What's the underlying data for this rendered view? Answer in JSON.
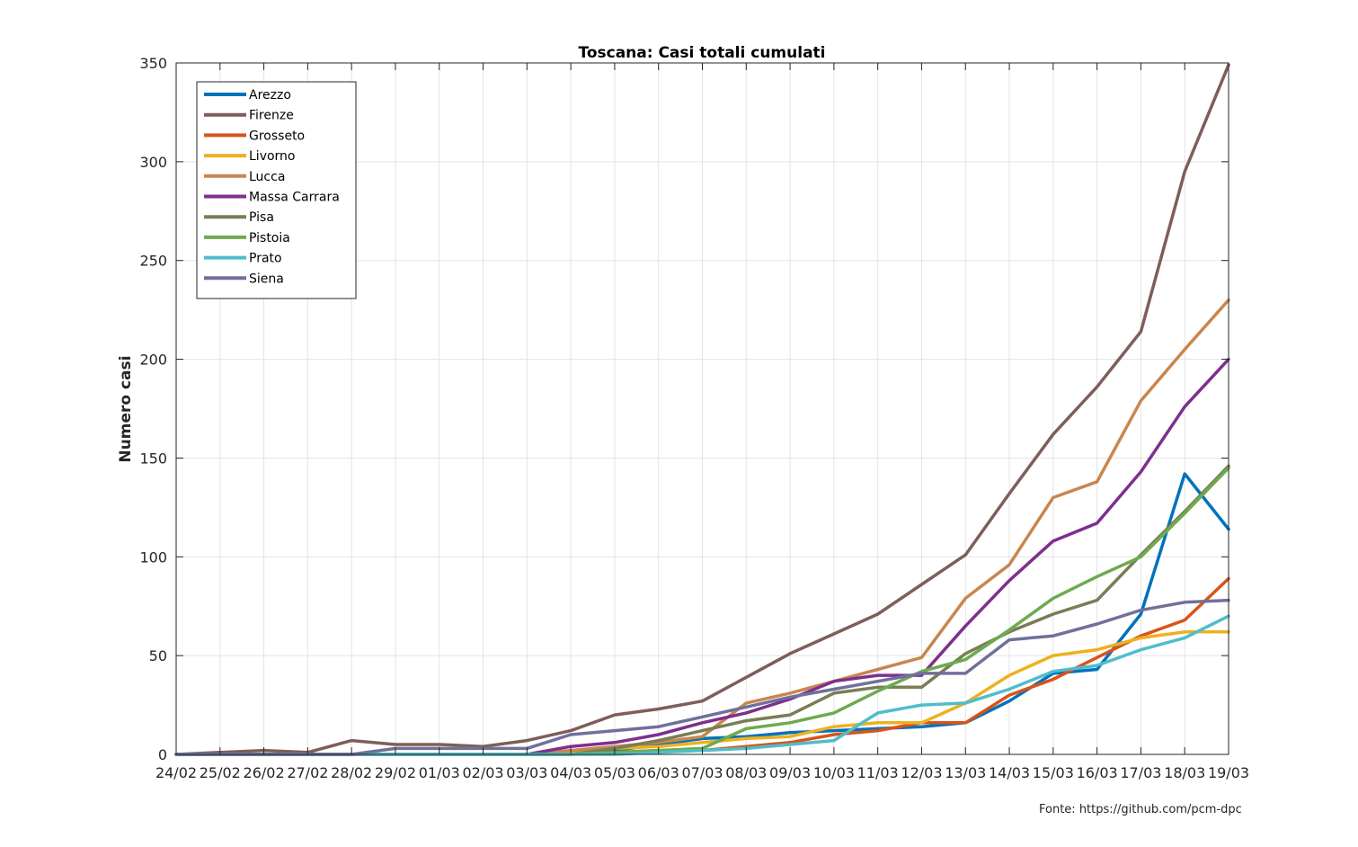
{
  "chart_data": {
    "type": "line",
    "title": "Toscana: Casi totali cumulati",
    "xlabel": "",
    "ylabel": "Numero casi",
    "ylim": [
      0,
      350
    ],
    "yticks": [
      0,
      50,
      100,
      150,
      200,
      250,
      300,
      350
    ],
    "grid": true,
    "legend_position": "top-left",
    "categories": [
      "24/02",
      "25/02",
      "26/02",
      "27/02",
      "28/02",
      "29/02",
      "01/03",
      "02/03",
      "03/03",
      "04/03",
      "05/03",
      "06/03",
      "07/03",
      "08/03",
      "09/03",
      "10/03",
      "11/03",
      "12/03",
      "13/03",
      "14/03",
      "15/03",
      "16/03",
      "17/03",
      "18/03",
      "19/03"
    ],
    "series": [
      {
        "name": "Arezzo",
        "color": "#0072BD",
        "values": [
          0,
          0,
          0,
          0,
          0,
          0,
          0,
          0,
          0,
          0,
          2,
          5,
          8,
          9,
          11,
          12,
          13,
          14,
          16,
          27,
          41,
          43,
          71,
          142,
          114
        ]
      },
      {
        "name": "Firenze",
        "color": "#7E5E5A",
        "values": [
          0,
          1,
          2,
          1,
          7,
          5,
          5,
          4,
          7,
          12,
          20,
          23,
          27,
          39,
          51,
          61,
          71,
          86,
          101,
          132,
          162,
          186,
          214,
          295,
          349
        ]
      },
      {
        "name": "Grosseto",
        "color": "#D95319",
        "values": [
          0,
          0,
          0,
          0,
          0,
          0,
          0,
          0,
          0,
          0,
          1,
          2,
          2,
          4,
          6,
          10,
          12,
          16,
          16,
          30,
          38,
          49,
          60,
          68,
          89
        ]
      },
      {
        "name": "Livorno",
        "color": "#EDB120",
        "values": [
          0,
          0,
          0,
          0,
          0,
          0,
          0,
          0,
          0,
          1,
          3,
          4,
          6,
          8,
          9,
          14,
          16,
          16,
          26,
          40,
          50,
          53,
          59,
          62,
          62
        ]
      },
      {
        "name": "Lucca",
        "color": "#C8864E",
        "values": [
          0,
          0,
          0,
          0,
          0,
          0,
          0,
          0,
          0,
          2,
          4,
          6,
          9,
          26,
          31,
          37,
          43,
          49,
          79,
          96,
          130,
          138,
          179,
          205,
          230
        ]
      },
      {
        "name": "Massa Carrara",
        "color": "#7E2F8E",
        "values": [
          0,
          0,
          0,
          0,
          0,
          0,
          0,
          0,
          0,
          4,
          6,
          10,
          16,
          21,
          28,
          37,
          40,
          40,
          65,
          88,
          108,
          117,
          143,
          176,
          200
        ]
      },
      {
        "name": "Pisa",
        "color": "#7A7D55",
        "values": [
          0,
          0,
          0,
          0,
          0,
          0,
          0,
          0,
          0,
          0,
          3,
          7,
          12,
          17,
          20,
          31,
          34,
          34,
          51,
          62,
          71,
          78,
          101,
          123,
          146
        ]
      },
      {
        "name": "Pistoia",
        "color": "#6DAB4E",
        "values": [
          0,
          0,
          0,
          0,
          0,
          0,
          0,
          0,
          0,
          0,
          1,
          2,
          3,
          13,
          16,
          21,
          32,
          42,
          48,
          63,
          79,
          90,
          100,
          122,
          145
        ]
      },
      {
        "name": "Prato",
        "color": "#4FBDCB",
        "values": [
          0,
          0,
          0,
          0,
          0,
          0,
          0,
          0,
          0,
          0,
          0,
          1,
          2,
          3,
          5,
          7,
          21,
          25,
          26,
          33,
          42,
          45,
          53,
          59,
          70
        ]
      },
      {
        "name": "Siena",
        "color": "#70709B",
        "values": [
          0,
          0,
          0,
          0,
          0,
          3,
          3,
          3,
          3,
          10,
          12,
          14,
          19,
          24,
          29,
          33,
          37,
          41,
          41,
          58,
          60,
          66,
          73,
          77,
          78
        ]
      }
    ]
  },
  "source_text": "Fonte: https://github.com/pcm-dpc"
}
